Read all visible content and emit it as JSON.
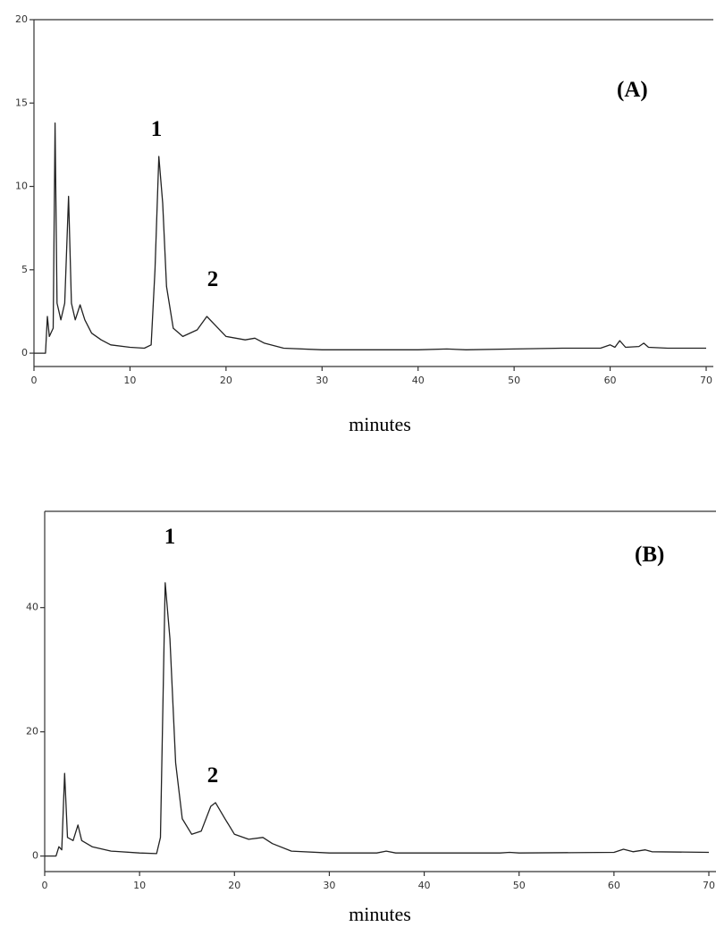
{
  "chart_data": [
    {
      "type": "line",
      "x_label": "minutes",
      "annotations": [
        "(A)",
        "1",
        "2"
      ],
      "color": "#222222",
      "xlim": [
        0,
        70
      ],
      "xticks": [
        0,
        10,
        20,
        30,
        40,
        50,
        60,
        70
      ],
      "ylim": [
        -0.8,
        20
      ],
      "yticks": [
        0,
        5,
        10,
        15,
        20
      ],
      "grid": false,
      "x": [
        0,
        1.2,
        1.4,
        1.6,
        2.0,
        2.2,
        2.4,
        2.8,
        3.2,
        3.6,
        3.9,
        4.3,
        4.8,
        5.3,
        6,
        7,
        8,
        10,
        11.5,
        12.2,
        12.6,
        13,
        13.4,
        13.8,
        14.5,
        15.5,
        17,
        18,
        19,
        20,
        22,
        23,
        24,
        26,
        30,
        40,
        43,
        45,
        50,
        55,
        59,
        60,
        60.5,
        61,
        61.6,
        63,
        63.5,
        64,
        66,
        70
      ],
      "values": [
        0,
        0,
        2.2,
        1.0,
        1.5,
        13.8,
        3,
        2,
        3,
        9.4,
        3,
        2,
        2.9,
        2,
        1.2,
        0.8,
        0.5,
        0.35,
        0.3,
        0.5,
        5,
        11.8,
        9,
        4,
        1.5,
        1.0,
        1.4,
        2.2,
        1.6,
        1.0,
        0.8,
        0.9,
        0.6,
        0.3,
        0.2,
        0.2,
        0.25,
        0.2,
        0.25,
        0.3,
        0.3,
        0.5,
        0.35,
        0.75,
        0.35,
        0.4,
        0.6,
        0.35,
        0.3,
        0.3
      ]
    },
    {
      "type": "line",
      "x_label": "minutes",
      "annotations": [
        "(B)",
        "1",
        "2"
      ],
      "color": "#222222",
      "xlim": [
        0,
        70
      ],
      "xticks": [
        0,
        10,
        20,
        30,
        40,
        50,
        60,
        70
      ],
      "ylim": [
        -2.5,
        55.5
      ],
      "yticks": [
        0,
        20,
        40
      ],
      "grid": false,
      "x": [
        0,
        1.2,
        1.5,
        1.8,
        2.1,
        2.4,
        3,
        3.5,
        3.9,
        5,
        7,
        10,
        11.8,
        12.2,
        12.7,
        13.2,
        13.8,
        14.5,
        15.5,
        16.5,
        17.5,
        18,
        19,
        20,
        21.5,
        23,
        24,
        26,
        30,
        35,
        36,
        37,
        48,
        49,
        50,
        60,
        61,
        62,
        63.3,
        64,
        70
      ],
      "values": [
        0,
        0,
        1.5,
        1.0,
        13.3,
        3,
        2.5,
        5,
        2.5,
        1.5,
        0.8,
        0.5,
        0.4,
        3,
        44,
        35,
        15,
        6,
        3.5,
        4,
        8,
        8.6,
        6,
        3.5,
        2.7,
        3,
        2,
        0.8,
        0.5,
        0.5,
        0.8,
        0.5,
        0.5,
        0.6,
        0.5,
        0.6,
        1.1,
        0.7,
        1.0,
        0.7,
        0.6
      ]
    }
  ]
}
